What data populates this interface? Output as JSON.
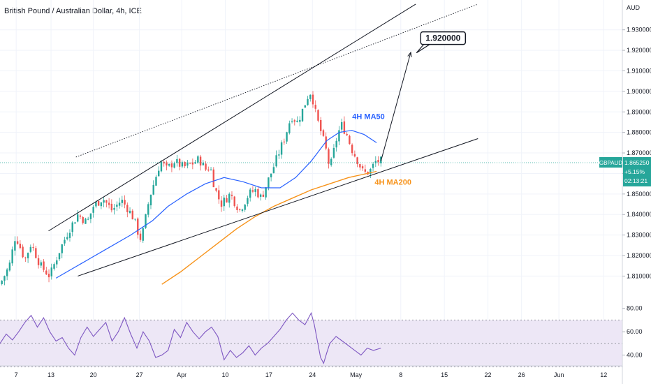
{
  "header": {
    "title": "British Pound / Australian Dollar, 4h, ICE"
  },
  "colors": {
    "up": "#26a69a",
    "down": "#ef5350",
    "ma50": "#2962ff",
    "ma200": "#f7931a",
    "rsi": "#7e57c2",
    "rsi_band": "#ede7f6",
    "badge": "#26a69a",
    "text": "#131722"
  },
  "chart_data": [
    {
      "type": "candlestick",
      "title": "British Pound / Australian Dollar, 4h, ICE",
      "ylabel": "AUD",
      "ylim": [
        1.803,
        1.935
      ],
      "y_ticks": [
        "1.930000",
        "1.920000",
        "1.910000",
        "1.900000",
        "1.890000",
        "1.880000",
        "1.870000",
        "1.860000",
        "1.850000",
        "1.840000",
        "1.830000",
        "1.820000",
        "1.810000"
      ],
      "x_tick_labels": [
        "7",
        "13",
        "20",
        "27",
        "Apr",
        "10",
        "17",
        "24",
        "May",
        "8",
        "15",
        "22",
        "26",
        "Jun",
        "12"
      ],
      "symbol": "GBPAUD",
      "last_price": "1.865250",
      "change": "+5.15%",
      "countdown": "02:13:21",
      "ohlc_path": [
        [
          0.0,
          1.806
        ],
        [
          0.015,
          1.815
        ],
        [
          0.025,
          1.83
        ],
        [
          0.04,
          1.818
        ],
        [
          0.05,
          1.826
        ],
        [
          0.065,
          1.815
        ],
        [
          0.08,
          1.81
        ],
        [
          0.095,
          1.822
        ],
        [
          0.11,
          1.832
        ],
        [
          0.125,
          1.84
        ],
        [
          0.14,
          1.836
        ],
        [
          0.15,
          1.844
        ],
        [
          0.165,
          1.848
        ],
        [
          0.18,
          1.842
        ],
        [
          0.195,
          1.847
        ],
        [
          0.205,
          1.843
        ],
        [
          0.215,
          1.838
        ],
        [
          0.225,
          1.828
        ],
        [
          0.23,
          1.832
        ],
        [
          0.24,
          1.848
        ],
        [
          0.25,
          1.858
        ],
        [
          0.258,
          1.866
        ],
        [
          0.268,
          1.862
        ],
        [
          0.28,
          1.866
        ],
        [
          0.295,
          1.863
        ],
        [
          0.31,
          1.865
        ],
        [
          0.32,
          1.867
        ],
        [
          0.33,
          1.862
        ],
        [
          0.338,
          1.863
        ],
        [
          0.345,
          1.853
        ],
        [
          0.355,
          1.845
        ],
        [
          0.37,
          1.85
        ],
        [
          0.385,
          1.842
        ],
        [
          0.4,
          1.85
        ],
        [
          0.41,
          1.852
        ],
        [
          0.42,
          1.848
        ],
        [
          0.43,
          1.856
        ],
        [
          0.438,
          1.862
        ],
        [
          0.448,
          1.87
        ],
        [
          0.458,
          1.878
        ],
        [
          0.468,
          1.888
        ],
        [
          0.478,
          1.885
        ],
        [
          0.485,
          1.89
        ],
        [
          0.495,
          1.898
        ],
        [
          0.5,
          1.9
        ],
        [
          0.508,
          1.888
        ],
        [
          0.518,
          1.878
        ],
        [
          0.525,
          1.87
        ],
        [
          0.53,
          1.862
        ],
        [
          0.54,
          1.876
        ],
        [
          0.548,
          1.884
        ],
        [
          0.556,
          1.88
        ],
        [
          0.565,
          1.872
        ],
        [
          0.575,
          1.866
        ],
        [
          0.584,
          1.86
        ],
        [
          0.594,
          1.861
        ],
        [
          0.604,
          1.866
        ],
        [
          0.612,
          1.866
        ]
      ],
      "ma50": {
        "name": "4H MA50",
        "path": [
          [
            0.09,
            1.809
          ],
          [
            0.13,
            1.816
          ],
          [
            0.17,
            1.823
          ],
          [
            0.21,
            1.83
          ],
          [
            0.245,
            1.837
          ],
          [
            0.27,
            1.844
          ],
          [
            0.3,
            1.85
          ],
          [
            0.33,
            1.855
          ],
          [
            0.36,
            1.858
          ],
          [
            0.39,
            1.856
          ],
          [
            0.42,
            1.853
          ],
          [
            0.45,
            1.853
          ],
          [
            0.475,
            1.858
          ],
          [
            0.5,
            1.866
          ],
          [
            0.525,
            1.876
          ],
          [
            0.545,
            1.88
          ],
          [
            0.565,
            1.881
          ],
          [
            0.585,
            1.879
          ],
          [
            0.605,
            1.875
          ]
        ]
      },
      "ma200": {
        "name": "4H MA200",
        "path": [
          [
            0.26,
            1.806
          ],
          [
            0.29,
            1.812
          ],
          [
            0.32,
            1.819
          ],
          [
            0.35,
            1.826
          ],
          [
            0.38,
            1.833
          ],
          [
            0.41,
            1.839
          ],
          [
            0.44,
            1.844
          ],
          [
            0.47,
            1.848
          ],
          [
            0.5,
            1.852
          ],
          [
            0.53,
            1.855
          ],
          [
            0.56,
            1.858
          ],
          [
            0.59,
            1.86
          ],
          [
            0.605,
            1.861
          ]
        ]
      },
      "channel_lines": [
        {
          "style": "solid",
          "from": [
            0.078,
            1.832
          ],
          "to": [
            0.668,
            1.9425
          ]
        },
        {
          "style": "solid",
          "from": [
            0.125,
            1.81
          ],
          "to": [
            0.768,
            1.877
          ]
        },
        {
          "style": "dotted",
          "from": [
            0.122,
            1.868
          ],
          "to": [
            0.768,
            1.9425
          ]
        }
      ],
      "projection_arrow": {
        "from": [
          0.612,
          1.866
        ],
        "to": [
          0.66,
          1.919
        ]
      },
      "target_label": {
        "text": "1.920000",
        "at": [
          0.676,
          1.929
        ]
      }
    },
    {
      "type": "line",
      "ylim": [
        32,
        87
      ],
      "y_ticks": [
        "80.00",
        "60.00",
        "40.00"
      ],
      "band": [
        30,
        70
      ],
      "midline": 50,
      "rsi_path": [
        [
          0.0,
          50
        ],
        [
          0.01,
          58
        ],
        [
          0.02,
          53
        ],
        [
          0.03,
          60
        ],
        [
          0.04,
          68
        ],
        [
          0.05,
          74
        ],
        [
          0.06,
          64
        ],
        [
          0.07,
          72
        ],
        [
          0.08,
          60
        ],
        [
          0.09,
          52
        ],
        [
          0.1,
          55
        ],
        [
          0.11,
          46
        ],
        [
          0.12,
          40
        ],
        [
          0.13,
          55
        ],
        [
          0.14,
          64
        ],
        [
          0.15,
          56
        ],
        [
          0.16,
          62
        ],
        [
          0.17,
          68
        ],
        [
          0.18,
          52
        ],
        [
          0.19,
          60
        ],
        [
          0.2,
          72
        ],
        [
          0.21,
          58
        ],
        [
          0.22,
          46
        ],
        [
          0.23,
          60
        ],
        [
          0.24,
          52
        ],
        [
          0.25,
          38
        ],
        [
          0.26,
          40
        ],
        [
          0.27,
          44
        ],
        [
          0.28,
          62
        ],
        [
          0.29,
          55
        ],
        [
          0.3,
          68
        ],
        [
          0.31,
          60
        ],
        [
          0.32,
          54
        ],
        [
          0.33,
          60
        ],
        [
          0.34,
          64
        ],
        [
          0.35,
          56
        ],
        [
          0.36,
          36
        ],
        [
          0.37,
          44
        ],
        [
          0.38,
          38
        ],
        [
          0.39,
          42
        ],
        [
          0.4,
          48
        ],
        [
          0.41,
          40
        ],
        [
          0.42,
          46
        ],
        [
          0.43,
          50
        ],
        [
          0.44,
          56
        ],
        [
          0.45,
          62
        ],
        [
          0.46,
          70
        ],
        [
          0.47,
          76
        ],
        [
          0.48,
          70
        ],
        [
          0.49,
          66
        ],
        [
          0.5,
          76
        ],
        [
          0.505,
          66
        ],
        [
          0.51,
          52
        ],
        [
          0.515,
          38
        ],
        [
          0.52,
          33
        ],
        [
          0.525,
          42
        ],
        [
          0.53,
          50
        ],
        [
          0.54,
          56
        ],
        [
          0.55,
          52
        ],
        [
          0.56,
          48
        ],
        [
          0.57,
          44
        ],
        [
          0.58,
          40
        ],
        [
          0.59,
          46
        ],
        [
          0.6,
          44
        ],
        [
          0.612,
          46
        ]
      ]
    }
  ]
}
